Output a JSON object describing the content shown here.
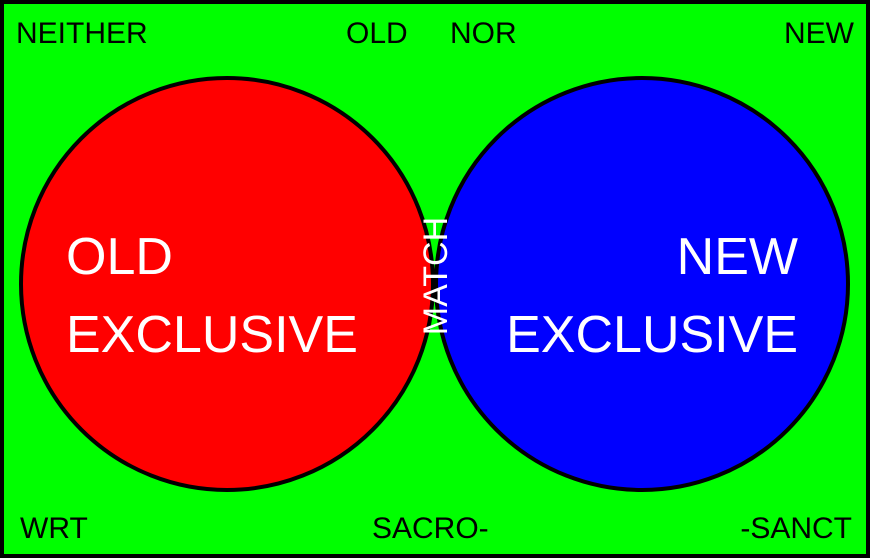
{
  "colors": {
    "background": "#00ff00",
    "old_circle": "#ff0000",
    "new_circle": "#0000ff",
    "overlap": "#000000",
    "outline": "#000000",
    "inner_text": "#ffffff"
  },
  "corners": {
    "top_left": "NEITHER",
    "top_center_left": "OLD",
    "top_center_right": "NOR",
    "top_right": "NEW",
    "bottom_left": "WRT",
    "bottom_center": "SACRO-",
    "bottom_right": "-SANCT"
  },
  "regions": {
    "old_exclusive": {
      "line1": "OLD",
      "line2": "EXCLUSIVE"
    },
    "new_exclusive": {
      "line1": "NEW",
      "line2": "EXCLUSIVE"
    },
    "match": "MATCH"
  }
}
